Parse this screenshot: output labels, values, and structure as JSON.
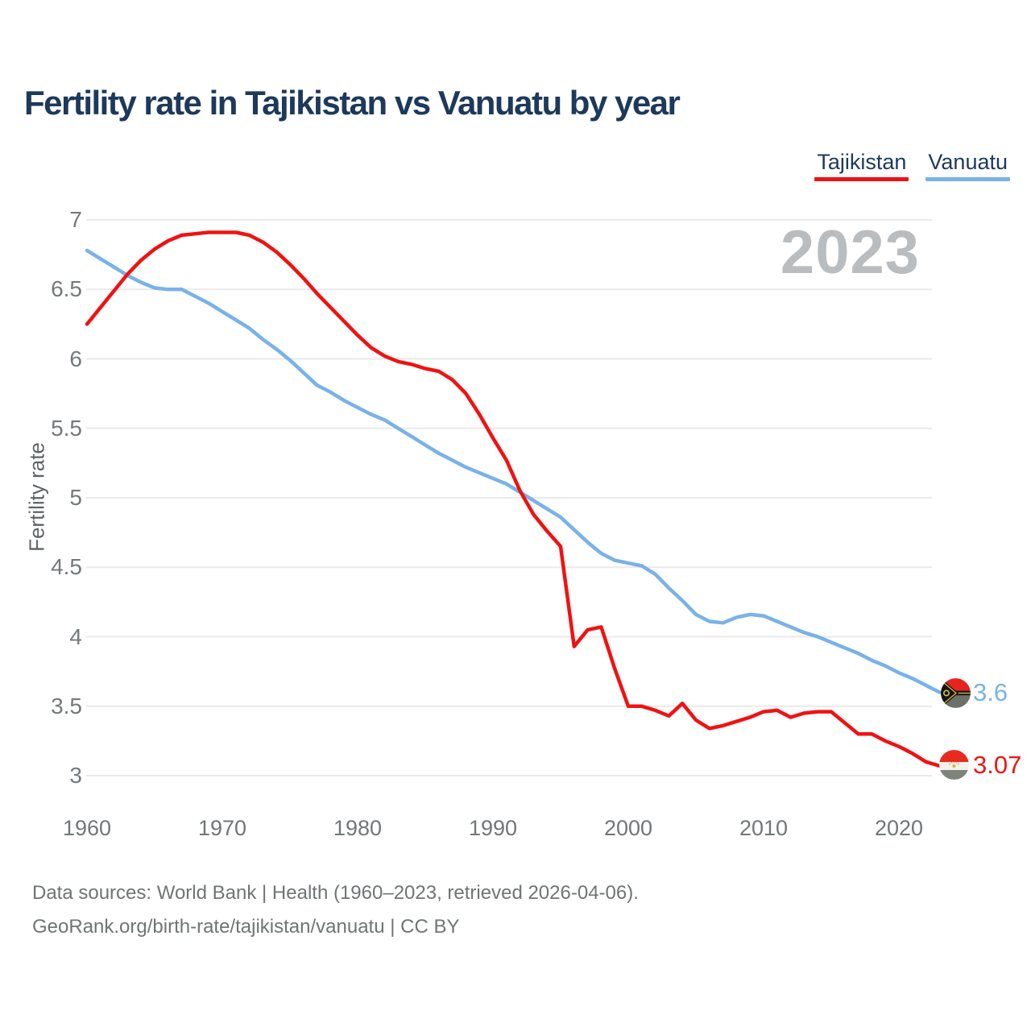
{
  "header": {
    "title": "Fertility rate in Tajikistan vs Vanuatu by year"
  },
  "legend": {
    "items": [
      {
        "label": "Tajikistan",
        "color": "#f01212"
      },
      {
        "label": "Vanuatu",
        "color": "#79b2e8"
      }
    ]
  },
  "watermark": {
    "year": "2023"
  },
  "chart_data": {
    "type": "line",
    "title": "Fertility rate in Tajikistan vs Vanuatu by year",
    "xlabel": "",
    "ylabel": "Fertility rate",
    "xlim": [
      1960,
      2023
    ],
    "ylim": [
      3,
      7
    ],
    "grid": true,
    "legend_position": "top-right",
    "x_tick_labels": [
      "1960",
      "1970",
      "1980",
      "1990",
      "2000",
      "2010",
      "2020"
    ],
    "y_tick_labels": [
      "7",
      "6.5",
      "6",
      "5.5",
      "5",
      "4.5",
      "4",
      "3.5",
      "3"
    ],
    "x": [
      1960,
      1961,
      1962,
      1963,
      1964,
      1965,
      1966,
      1967,
      1968,
      1969,
      1970,
      1971,
      1972,
      1973,
      1974,
      1975,
      1976,
      1977,
      1978,
      1979,
      1980,
      1981,
      1982,
      1983,
      1984,
      1985,
      1986,
      1987,
      1988,
      1989,
      1990,
      1991,
      1992,
      1993,
      1994,
      1995,
      1996,
      1997,
      1998,
      1999,
      2000,
      2001,
      2002,
      2003,
      2004,
      2005,
      2006,
      2007,
      2008,
      2009,
      2010,
      2011,
      2012,
      2013,
      2014,
      2015,
      2016,
      2017,
      2018,
      2019,
      2020,
      2021,
      2022,
      2023
    ],
    "series": [
      {
        "name": "Tajikistan",
        "color": "#f01212",
        "end_value_label": "3.07",
        "flag": "tajikistan-flag",
        "values": [
          6.25,
          6.37,
          6.49,
          6.61,
          6.71,
          6.79,
          6.85,
          6.89,
          6.9,
          6.91,
          6.91,
          6.91,
          6.89,
          6.84,
          6.77,
          6.68,
          6.58,
          6.47,
          6.37,
          6.27,
          6.17,
          6.08,
          6.02,
          5.98,
          5.96,
          5.93,
          5.91,
          5.85,
          5.75,
          5.6,
          5.43,
          5.27,
          5.05,
          4.88,
          4.76,
          4.65,
          3.93,
          4.05,
          4.07,
          3.77,
          3.5,
          3.5,
          3.47,
          3.43,
          3.52,
          3.4,
          3.34,
          3.36,
          3.39,
          3.42,
          3.46,
          3.47,
          3.42,
          3.45,
          3.46,
          3.46,
          3.38,
          3.3,
          3.3,
          3.25,
          3.21,
          3.16,
          3.1,
          3.07
        ]
      },
      {
        "name": "Vanuatu",
        "color": "#79b2e8",
        "end_value_label": "3.6",
        "flag": "vanuatu-flag",
        "values": [
          6.78,
          6.72,
          6.66,
          6.6,
          6.55,
          6.51,
          6.5,
          6.5,
          6.45,
          6.4,
          6.34,
          6.28,
          6.22,
          6.14,
          6.07,
          5.99,
          5.9,
          5.81,
          5.76,
          5.7,
          5.65,
          5.6,
          5.56,
          5.5,
          5.44,
          5.38,
          5.32,
          5.27,
          5.22,
          5.18,
          5.14,
          5.1,
          5.04,
          4.98,
          4.92,
          4.86,
          4.77,
          4.68,
          4.6,
          4.55,
          4.53,
          4.51,
          4.45,
          4.35,
          4.26,
          4.16,
          4.11,
          4.1,
          4.14,
          4.16,
          4.15,
          4.11,
          4.07,
          4.03,
          4.0,
          3.96,
          3.92,
          3.88,
          3.83,
          3.79,
          3.74,
          3.7,
          3.65,
          3.6
        ]
      }
    ]
  },
  "footer": {
    "line1": "Data sources: World Bank | Health (1960–2023, retrieved 2026-04-06).",
    "line2": "GeoRank.org/birth-rate/tajikistan/vanuatu | CC BY"
  }
}
